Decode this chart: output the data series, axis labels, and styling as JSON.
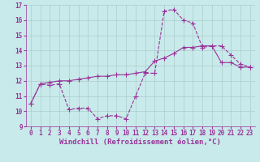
{
  "xlabel": "Windchill (Refroidissement éolien,°C)",
  "ylabel": "",
  "background_color": "#c8eaea",
  "line_color": "#993399",
  "grid_color": "#aacccc",
  "xlim": [
    -0.5,
    23.5
  ],
  "ylim": [
    9,
    17
  ],
  "xticks": [
    0,
    1,
    2,
    3,
    4,
    5,
    6,
    7,
    8,
    9,
    10,
    11,
    12,
    13,
    14,
    15,
    16,
    17,
    18,
    19,
    20,
    21,
    22,
    23
  ],
  "yticks": [
    9,
    10,
    11,
    12,
    13,
    14,
    15,
    16,
    17
  ],
  "line1_x": [
    0,
    1,
    2,
    3,
    4,
    5,
    6,
    7,
    8,
    9,
    10,
    11,
    12,
    13,
    14,
    15,
    16,
    17,
    18,
    19,
    20,
    21,
    22,
    23
  ],
  "line1_y": [
    10.5,
    11.8,
    11.7,
    11.8,
    10.1,
    10.2,
    10.2,
    9.5,
    9.7,
    9.7,
    9.5,
    11.0,
    12.5,
    12.5,
    16.6,
    16.7,
    16.0,
    15.8,
    14.2,
    14.3,
    14.3,
    13.7,
    13.1,
    12.9
  ],
  "line2_x": [
    0,
    1,
    2,
    3,
    4,
    5,
    6,
    7,
    8,
    9,
    10,
    11,
    12,
    13,
    14,
    15,
    16,
    17,
    18,
    19,
    20,
    21,
    22,
    23
  ],
  "line2_y": [
    10.5,
    11.8,
    11.9,
    12.0,
    12.0,
    12.1,
    12.2,
    12.3,
    12.3,
    12.4,
    12.4,
    12.5,
    12.6,
    13.3,
    13.5,
    13.8,
    14.2,
    14.2,
    14.3,
    14.3,
    13.2,
    13.2,
    12.9,
    12.9
  ],
  "marker": "+",
  "markersize": 4,
  "linewidth": 0.8,
  "tick_fontsize": 5.5,
  "xlabel_fontsize": 6.5
}
